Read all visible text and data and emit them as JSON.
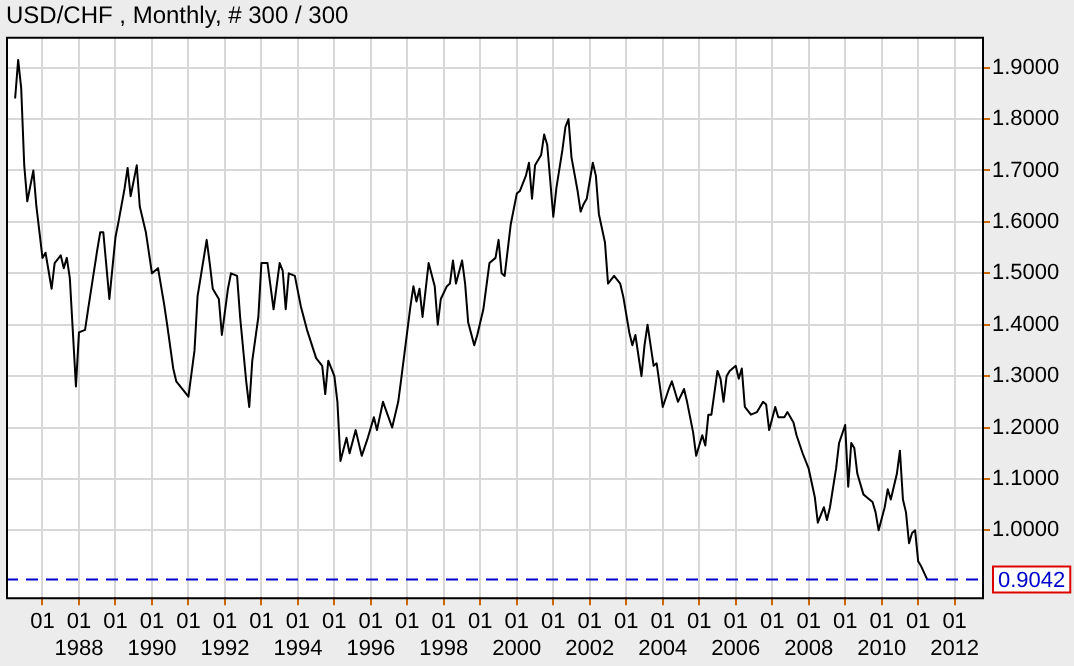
{
  "chart_data": {
    "type": "line",
    "title": "USD/CHF , Monthly, # 300 / 300",
    "grid": true,
    "legend": false,
    "marker": "none",
    "line_style": "solid",
    "xlim": [
      "1986-01",
      "2012-10"
    ],
    "ylim": [
      0.87,
      1.96
    ],
    "xticks": [
      {
        "value": "1987-01",
        "label": "01"
      },
      {
        "value": "1988-01",
        "label": "01\n1988"
      },
      {
        "value": "1989-01",
        "label": "01"
      },
      {
        "value": "1990-01",
        "label": "01\n1990"
      },
      {
        "value": "1991-01",
        "label": "01"
      },
      {
        "value": "1992-01",
        "label": "01\n1992"
      },
      {
        "value": "1993-01",
        "label": "01"
      },
      {
        "value": "1994-01",
        "label": "01\n1994"
      },
      {
        "value": "1995-01",
        "label": "01"
      },
      {
        "value": "1996-01",
        "label": "01\n1996"
      },
      {
        "value": "1997-01",
        "label": "01"
      },
      {
        "value": "1998-01",
        "label": "01\n1998"
      },
      {
        "value": "1999-01",
        "label": "01"
      },
      {
        "value": "2000-01",
        "label": "01\n2000"
      },
      {
        "value": "2001-01",
        "label": "01"
      },
      {
        "value": "2002-01",
        "label": "01\n2002"
      },
      {
        "value": "2003-01",
        "label": "01"
      },
      {
        "value": "2004-01",
        "label": "01\n2004"
      },
      {
        "value": "2005-01",
        "label": "01"
      },
      {
        "value": "2006-01",
        "label": "01\n2006"
      },
      {
        "value": "2007-01",
        "label": "01"
      },
      {
        "value": "2008-01",
        "label": "01\n2008"
      },
      {
        "value": "2009-01",
        "label": "01"
      },
      {
        "value": "2010-01",
        "label": "01\n2010"
      },
      {
        "value": "2011-01",
        "label": "01"
      },
      {
        "value": "2012-01",
        "label": "01\n2012"
      }
    ],
    "yticks": [
      {
        "value": 1.0,
        "label": "1.0000"
      },
      {
        "value": 1.1,
        "label": "1.1000"
      },
      {
        "value": 1.2,
        "label": "1.2000"
      },
      {
        "value": 1.3,
        "label": "1.3000"
      },
      {
        "value": 1.4,
        "label": "1.4000"
      },
      {
        "value": 1.5,
        "label": "1.5000"
      },
      {
        "value": 1.6,
        "label": "1.6000"
      },
      {
        "value": 1.7,
        "label": "1.7000"
      },
      {
        "value": 1.8,
        "label": "1.8000"
      },
      {
        "value": 1.9,
        "label": "1.9000"
      }
    ],
    "ref_lines": [
      {
        "axis": "y",
        "value": 0.9042,
        "label": "0.9042",
        "color": "#0000cc",
        "line_style": "dashed"
      }
    ],
    "x": [
      "1986-04",
      "1986-05",
      "1986-06",
      "1986-07",
      "1986-08",
      "1986-10",
      "1986-11",
      "1987-01",
      "1987-02",
      "1987-04",
      "1987-05",
      "1987-07",
      "1987-08",
      "1987-09",
      "1987-10",
      "1987-12",
      "1988-01",
      "1988-03",
      "1988-04",
      "1988-07",
      "1988-08",
      "1988-09",
      "1988-11",
      "1989-01",
      "1989-02",
      "1989-04",
      "1989-05",
      "1989-06",
      "1989-08",
      "1989-09",
      "1989-11",
      "1990-01",
      "1990-03",
      "1990-05",
      "1990-06",
      "1990-08",
      "1990-09",
      "1991-01",
      "1991-03",
      "1991-04",
      "1991-07",
      "1991-08",
      "1991-09",
      "1991-11",
      "1991-12",
      "1992-02",
      "1992-03",
      "1992-05",
      "1992-06",
      "1992-08",
      "1992-09",
      "1992-10",
      "1992-12",
      "1993-01",
      "1993-03",
      "1993-05",
      "1993-07",
      "1993-08",
      "1993-09",
      "1993-10",
      "1993-12",
      "1994-02",
      "1994-04",
      "1994-07",
      "1994-09",
      "1994-10",
      "1994-11",
      "1995-01",
      "1995-02",
      "1995-03",
      "1995-05",
      "1995-06",
      "1995-08",
      "1995-10",
      "1995-12",
      "1996-02",
      "1996-03",
      "1996-05",
      "1996-08",
      "1996-10",
      "1996-11",
      "1997-02",
      "1997-03",
      "1997-04",
      "1997-05",
      "1997-06",
      "1997-08",
      "1997-10",
      "1997-11",
      "1997-12",
      "1998-02",
      "1998-03",
      "1998-04",
      "1998-05",
      "1998-07",
      "1998-08",
      "1998-09",
      "1998-11",
      "1998-12",
      "1999-02",
      "1999-04",
      "1999-06",
      "1999-07",
      "1999-08",
      "1999-09",
      "1999-11",
      "2000-01",
      "2000-02",
      "2000-04",
      "2000-05",
      "2000-06",
      "2000-07",
      "2000-09",
      "2000-10",
      "2000-11",
      "2001-01",
      "2001-02",
      "2001-04",
      "2001-05",
      "2001-06",
      "2001-07",
      "2001-09",
      "2001-10",
      "2001-11",
      "2001-12",
      "2002-02",
      "2002-03",
      "2002-04",
      "2002-06",
      "2002-07",
      "2002-09",
      "2002-11",
      "2002-12",
      "2003-02",
      "2003-03",
      "2003-04",
      "2003-06",
      "2003-07",
      "2003-08",
      "2003-10",
      "2003-11",
      "2004-01",
      "2004-03",
      "2004-04",
      "2004-06",
      "2004-08",
      "2004-09",
      "2004-11",
      "2004-12",
      "2005-02",
      "2005-03",
      "2005-04",
      "2005-05",
      "2005-07",
      "2005-08",
      "2005-09",
      "2005-10",
      "2005-11",
      "2006-01",
      "2006-02",
      "2006-03",
      "2006-04",
      "2006-06",
      "2006-08",
      "2006-10",
      "2006-11",
      "2006-12",
      "2007-02",
      "2007-03",
      "2007-05",
      "2007-06",
      "2007-08",
      "2007-09",
      "2007-11",
      "2008-01",
      "2008-03",
      "2008-04",
      "2008-06",
      "2008-07",
      "2008-08",
      "2008-10",
      "2008-11",
      "2009-01",
      "2009-02",
      "2009-03",
      "2009-04",
      "2009-05",
      "2009-07",
      "2009-08",
      "2009-10",
      "2009-11",
      "2009-12",
      "2010-02",
      "2010-03",
      "2010-04",
      "2010-06",
      "2010-07",
      "2010-08",
      "2010-09",
      "2010-10",
      "2010-11",
      "2010-12",
      "2011-01",
      "2011-02",
      "2011-04"
    ],
    "series": [
      {
        "color": "#000000",
        "values": [
          1.84,
          1.915,
          1.86,
          1.71,
          1.64,
          1.7,
          1.63,
          1.53,
          1.54,
          1.47,
          1.52,
          1.535,
          1.51,
          1.53,
          1.49,
          1.28,
          1.385,
          1.39,
          1.43,
          1.545,
          1.58,
          1.58,
          1.45,
          1.57,
          1.6,
          1.665,
          1.705,
          1.65,
          1.71,
          1.63,
          1.58,
          1.5,
          1.51,
          1.44,
          1.4,
          1.315,
          1.29,
          1.26,
          1.35,
          1.455,
          1.565,
          1.52,
          1.47,
          1.45,
          1.38,
          1.47,
          1.5,
          1.495,
          1.415,
          1.29,
          1.24,
          1.33,
          1.415,
          1.52,
          1.52,
          1.43,
          1.52,
          1.505,
          1.43,
          1.5,
          1.495,
          1.435,
          1.39,
          1.335,
          1.32,
          1.265,
          1.33,
          1.3,
          1.25,
          1.135,
          1.18,
          1.15,
          1.195,
          1.145,
          1.18,
          1.22,
          1.195,
          1.25,
          1.2,
          1.25,
          1.295,
          1.435,
          1.475,
          1.445,
          1.47,
          1.415,
          1.52,
          1.475,
          1.4,
          1.45,
          1.475,
          1.48,
          1.525,
          1.48,
          1.525,
          1.48,
          1.405,
          1.36,
          1.38,
          1.43,
          1.52,
          1.53,
          1.565,
          1.5,
          1.495,
          1.595,
          1.655,
          1.66,
          1.69,
          1.715,
          1.645,
          1.71,
          1.73,
          1.77,
          1.75,
          1.61,
          1.665,
          1.74,
          1.785,
          1.8,
          1.725,
          1.66,
          1.62,
          1.635,
          1.645,
          1.715,
          1.69,
          1.615,
          1.56,
          1.48,
          1.495,
          1.48,
          1.455,
          1.385,
          1.36,
          1.38,
          1.3,
          1.36,
          1.4,
          1.32,
          1.325,
          1.24,
          1.275,
          1.29,
          1.25,
          1.275,
          1.25,
          1.19,
          1.145,
          1.185,
          1.165,
          1.225,
          1.225,
          1.31,
          1.295,
          1.25,
          1.3,
          1.31,
          1.32,
          1.295,
          1.315,
          1.24,
          1.225,
          1.23,
          1.25,
          1.245,
          1.195,
          1.24,
          1.22,
          1.22,
          1.23,
          1.21,
          1.185,
          1.15,
          1.12,
          1.065,
          1.015,
          1.045,
          1.02,
          1.045,
          1.12,
          1.17,
          1.205,
          1.085,
          1.17,
          1.16,
          1.11,
          1.07,
          1.065,
          1.055,
          1.035,
          1.0,
          1.045,
          1.08,
          1.06,
          1.11,
          1.155,
          1.06,
          1.035,
          0.975,
          0.995,
          1.0,
          0.94,
          0.93,
          0.9042
        ]
      }
    ]
  }
}
